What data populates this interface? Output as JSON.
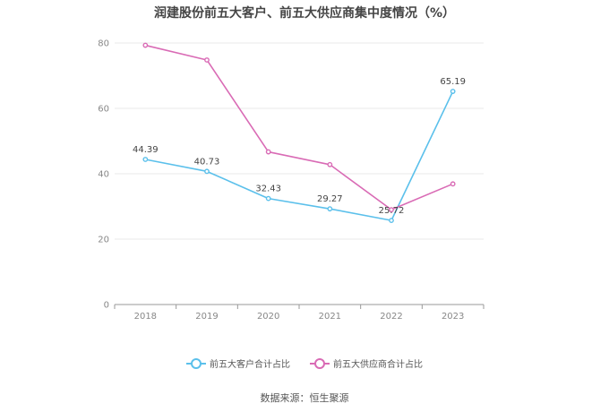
{
  "title": "润建股份前五大客户、前五大供应商集中度情况（%）",
  "source": "数据来源：恒生聚源",
  "chart_data": {
    "type": "line",
    "categories": [
      "2018",
      "2019",
      "2020",
      "2021",
      "2022",
      "2023"
    ],
    "ylim": [
      0,
      80
    ],
    "yticks": [
      0,
      20,
      40,
      60,
      80
    ],
    "grid": true,
    "legend_position": "bottom",
    "series": [
      {
        "name": "前五大客户合计占比",
        "color": "#5bc0eb",
        "values": [
          44.39,
          40.73,
          32.43,
          29.27,
          25.72,
          65.19
        ],
        "labels": [
          "44.39",
          "40.73",
          "32.43",
          "29.27",
          "25.72",
          "65.19"
        ]
      },
      {
        "name": "前五大供应商合计占比",
        "color": "#d96bb5",
        "values": [
          79.3,
          74.8,
          46.7,
          42.8,
          29.0,
          36.9
        ]
      }
    ]
  }
}
